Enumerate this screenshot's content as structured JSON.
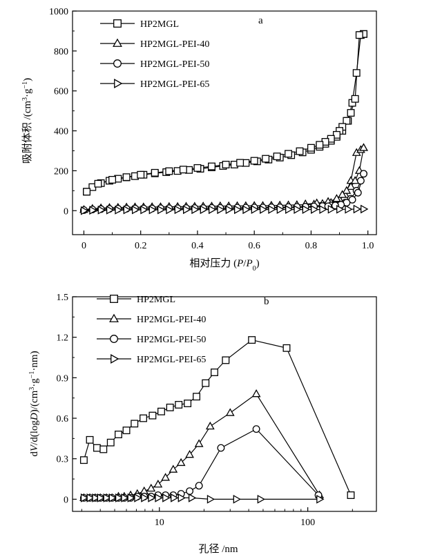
{
  "chart_data": [
    {
      "type": "line",
      "panel_label": "a",
      "xlabel": "相对压力 (P/P0)",
      "xlabel_parts": [
        "相对压力 (",
        "P",
        "/",
        "P",
        "0",
        ")"
      ],
      "ylabel": "吸附体积 /(cm³·g⁻¹)",
      "ylabel_parts": [
        "吸附体积 /(cm",
        "3",
        "·g",
        "−1",
        ")"
      ],
      "xlim": [
        -0.04,
        1.03
      ],
      "ylim": [
        -120,
        1000
      ],
      "x_ticks": [
        0,
        0.2,
        0.4,
        0.6,
        0.8,
        1.0
      ],
      "x_tick_labels": [
        "0",
        "0.2",
        "0.4",
        "0.6",
        "0.8",
        "1.0"
      ],
      "y_ticks": [
        0,
        200,
        400,
        600,
        800,
        1000
      ],
      "y_tick_labels": [
        "0",
        "200",
        "400",
        "600",
        "800",
        "1000"
      ],
      "legend_position": "top-left",
      "series": [
        {
          "name": "HP2MGL",
          "marker": "square",
          "branches": [
            {
              "x": [
                0.01,
                0.03,
                0.06,
                0.09,
                0.12,
                0.15,
                0.18,
                0.21,
                0.25,
                0.29,
                0.33,
                0.37,
                0.41,
                0.45,
                0.49,
                0.53,
                0.57,
                0.61,
                0.65,
                0.69,
                0.73,
                0.77,
                0.8,
                0.83,
                0.85,
                0.87,
                0.89,
                0.91,
                0.93,
                0.945,
                0.96,
                0.975,
                0.985
              ],
              "y": [
                95,
                118,
                138,
                150,
                160,
                167,
                173,
                180,
                187,
                193,
                199,
                204,
                210,
                217,
                224,
                231,
                239,
                247,
                256,
                266,
                278,
                292,
                305,
                320,
                335,
                350,
                370,
                400,
                450,
                540,
                690,
                880,
                885
              ]
            },
            {
              "x": [
                0.985,
                0.97,
                0.955,
                0.94,
                0.925,
                0.91,
                0.9,
                0.89,
                0.87,
                0.85,
                0.83,
                0.8,
                0.76,
                0.72,
                0.68,
                0.64,
                0.6,
                0.55,
                0.5,
                0.45,
                0.4,
                0.35,
                0.3,
                0.25,
                0.2,
                0.15,
                0.1,
                0.05,
                0.01
              ],
              "y": [
                885,
                880,
                560,
                490,
                450,
                420,
                400,
                380,
                360,
                345,
                330,
                315,
                298,
                285,
                272,
                260,
                250,
                240,
                231,
                222,
                214,
                206,
                198,
                190,
                180,
                168,
                155,
                135,
                95
              ]
            }
          ]
        },
        {
          "name": "HP2MGL-PEI-40",
          "marker": "triangle-up",
          "branches": [
            {
              "x": [
                0.0,
                0.03,
                0.06,
                0.09,
                0.12,
                0.15,
                0.18,
                0.21,
                0.24,
                0.27,
                0.3,
                0.33,
                0.36,
                0.39,
                0.42,
                0.45,
                0.48,
                0.51,
                0.54,
                0.57,
                0.6,
                0.63,
                0.66,
                0.69,
                0.72,
                0.75,
                0.78,
                0.81,
                0.84,
                0.87,
                0.9,
                0.92,
                0.94,
                0.96,
                0.975,
                0.985
              ],
              "y": [
                5,
                10,
                13,
                15,
                16,
                17,
                18,
                18,
                19,
                19,
                20,
                20,
                21,
                21,
                22,
                22,
                23,
                23,
                24,
                24,
                25,
                25,
                26,
                27,
                28,
                29,
                30,
                32,
                35,
                40,
                55,
                80,
                150,
                290,
                305,
                315
              ]
            },
            {
              "x": [
                0.985,
                0.97,
                0.955,
                0.94,
                0.925,
                0.91,
                0.89,
                0.86,
                0.82,
                0.78
              ],
              "y": [
                315,
                200,
                150,
                120,
                100,
                80,
                60,
                45,
                38,
                33
              ]
            }
          ]
        },
        {
          "name": "HP2MGL-PEI-50",
          "marker": "circle",
          "branches": [
            {
              "x": [
                0.0,
                0.03,
                0.06,
                0.09,
                0.12,
                0.15,
                0.18,
                0.21,
                0.24,
                0.27,
                0.3,
                0.33,
                0.36,
                0.39,
                0.42,
                0.45,
                0.48,
                0.51,
                0.54,
                0.57,
                0.6,
                0.63,
                0.66,
                0.69,
                0.72,
                0.75,
                0.78,
                0.81,
                0.84,
                0.87,
                0.9,
                0.92,
                0.94,
                0.96,
                0.975,
                0.985
              ],
              "y": [
                3,
                6,
                8,
                9,
                10,
                10,
                11,
                11,
                11,
                12,
                12,
                12,
                13,
                13,
                13,
                14,
                14,
                14,
                15,
                15,
                16,
                16,
                17,
                17,
                18,
                19,
                20,
                21,
                23,
                26,
                30,
                40,
                60,
                100,
                150,
                185
              ]
            },
            {
              "x": [
                0.985,
                0.965,
                0.945,
                0.925,
                0.905,
                0.885,
                0.86
              ],
              "y": [
                185,
                90,
                55,
                40,
                30,
                26,
                22
              ]
            }
          ]
        },
        {
          "name": "HP2MGL-PEI-65",
          "marker": "triangle-right",
          "branches": [
            {
              "x": [
                0.0,
                0.03,
                0.06,
                0.09,
                0.12,
                0.15,
                0.18,
                0.21,
                0.24,
                0.27,
                0.3,
                0.33,
                0.36,
                0.39,
                0.42,
                0.45,
                0.48,
                0.51,
                0.54,
                0.57,
                0.6,
                0.63,
                0.66,
                0.69,
                0.72,
                0.75,
                0.78,
                0.81,
                0.84,
                0.87,
                0.9,
                0.93,
                0.96,
                0.985
              ],
              "y": [
                0,
                2,
                3,
                3,
                3,
                4,
                4,
                4,
                4,
                4,
                4,
                5,
                5,
                5,
                5,
                5,
                5,
                5,
                5,
                5,
                6,
                6,
                6,
                6,
                6,
                6,
                6,
                6,
                6,
                7,
                7,
                7,
                8,
                8
              ]
            }
          ]
        }
      ]
    },
    {
      "type": "line",
      "panel_label": "b",
      "xlabel": "孔径 /nm",
      "ylabel": "dV/d(logD)/(cm³·g⁻¹·nm)",
      "ylabel_parts": [
        "d",
        "V",
        "/d(log",
        "D",
        ")/(cm",
        "3",
        "·g",
        "−1",
        "·nm)"
      ],
      "xscale": "log",
      "xlim": [
        2.6,
        290
      ],
      "ylim": [
        -0.09,
        1.5
      ],
      "x_ticks": [
        10,
        100
      ],
      "x_tick_labels": [
        "10",
        "100"
      ],
      "y_ticks": [
        0,
        0.3,
        0.6,
        0.9,
        1.2,
        1.5
      ],
      "y_tick_labels": [
        "0",
        "0.3",
        "0.6",
        "0.9",
        "1.2",
        "1.5"
      ],
      "legend_position": "top-left",
      "series": [
        {
          "name": "HP2MGL",
          "marker": "square",
          "x": [
            3.1,
            3.4,
            3.8,
            4.2,
            4.7,
            5.3,
            6.0,
            6.8,
            7.8,
            9.0,
            10.3,
            11.8,
            13.5,
            15.5,
            17.8,
            20.5,
            23.5,
            28,
            42,
            72,
            195
          ],
          "y": [
            0.29,
            0.44,
            0.38,
            0.37,
            0.42,
            0.48,
            0.51,
            0.56,
            0.6,
            0.62,
            0.65,
            0.68,
            0.7,
            0.71,
            0.76,
            0.86,
            0.94,
            1.03,
            1.18,
            1.12,
            0.03
          ]
        },
        {
          "name": "HP2MGL-PEI-40",
          "marker": "triangle-up",
          "x": [
            3.1,
            3.4,
            3.7,
            4.0,
            4.4,
            4.8,
            5.3,
            5.8,
            6.4,
            7.1,
            7.9,
            8.8,
            9.8,
            11.0,
            12.4,
            14.0,
            16.0,
            18.5,
            22,
            30,
            45,
            120
          ],
          "y": [
            0.01,
            0.01,
            0.01,
            0.01,
            0.01,
            0.01,
            0.02,
            0.02,
            0.03,
            0.04,
            0.06,
            0.08,
            0.11,
            0.16,
            0.22,
            0.27,
            0.33,
            0.41,
            0.54,
            0.64,
            0.78,
            0.03
          ]
        },
        {
          "name": "HP2MGL-PEI-50",
          "marker": "circle",
          "x": [
            3.1,
            3.4,
            3.7,
            4.0,
            4.4,
            4.8,
            5.3,
            5.8,
            6.4,
            7.1,
            7.9,
            8.8,
            9.8,
            11.0,
            12.4,
            14.0,
            16.0,
            18.5,
            26,
            45,
            118
          ],
          "y": [
            0.01,
            0.01,
            0.01,
            0.01,
            0.01,
            0.01,
            0.01,
            0.01,
            0.01,
            0.02,
            0.02,
            0.02,
            0.03,
            0.03,
            0.03,
            0.04,
            0.06,
            0.1,
            0.38,
            0.52,
            0.03
          ]
        },
        {
          "name": "HP2MGL-PEI-65",
          "marker": "triangle-right",
          "x": [
            3.1,
            3.4,
            3.7,
            4.0,
            4.4,
            4.8,
            5.3,
            5.8,
            6.4,
            7.1,
            7.9,
            8.8,
            9.8,
            11.0,
            12.5,
            14.0,
            16.5,
            22,
            33,
            48,
            120
          ],
          "y": [
            0.01,
            0.01,
            0.01,
            0.01,
            0.01,
            0.01,
            0.01,
            0.01,
            0.01,
            0.01,
            0.01,
            0.01,
            0.01,
            0.01,
            0.01,
            0.01,
            0.01,
            0.0,
            0.0,
            0.0,
            0.0
          ]
        }
      ]
    }
  ]
}
